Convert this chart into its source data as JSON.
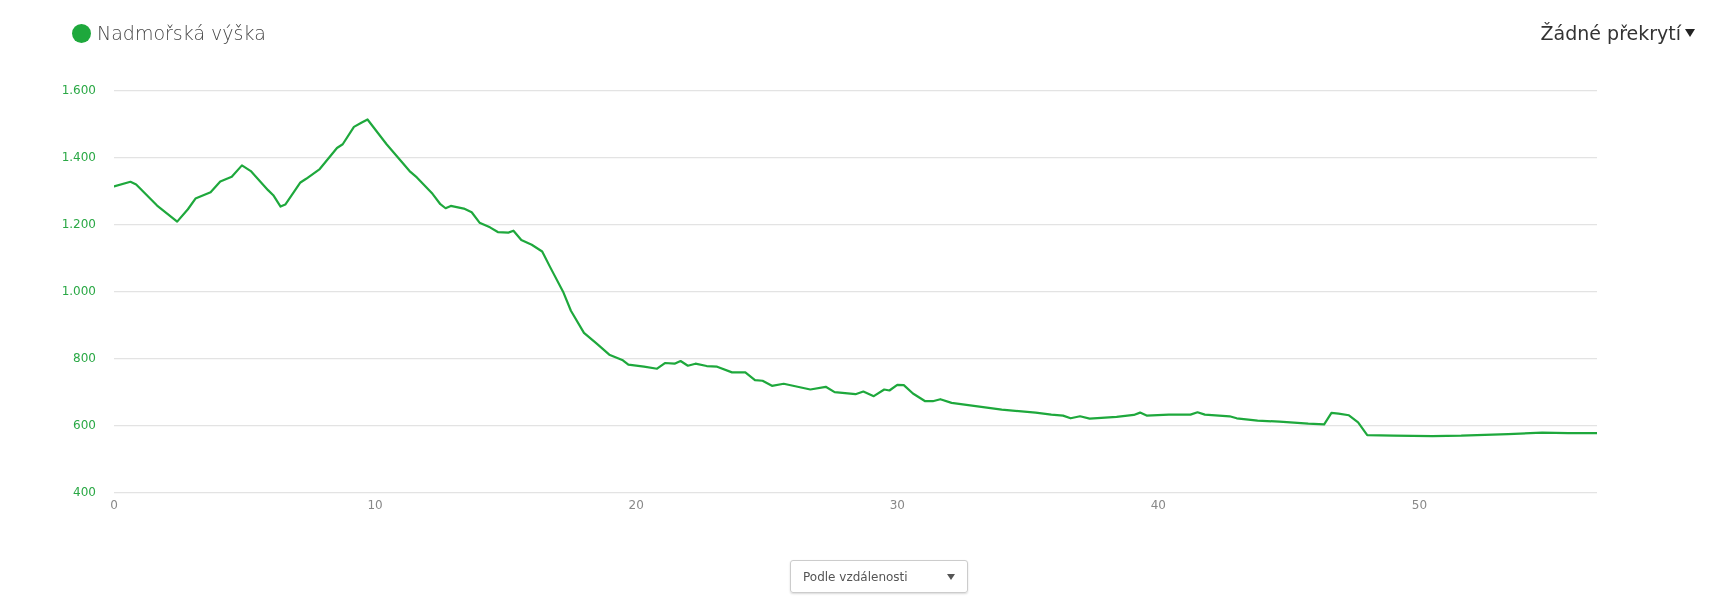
{
  "chart_data": {
    "type": "line",
    "legend": "top left",
    "grid": "y",
    "marker": "none",
    "line_style": "solid",
    "xlim": [
      0,
      56.8
    ],
    "xticks": [
      0,
      10,
      20,
      30,
      40,
      50
    ],
    "ylim": [
      400,
      1600
    ],
    "yticks": [
      400,
      600,
      800,
      {
        "value": 1000,
        "label": "1.000"
      },
      {
        "value": 1200,
        "label": "1.200"
      },
      {
        "value": 1400,
        "label": "1.400"
      },
      {
        "value": 1600,
        "label": "1.600"
      }
    ],
    "annotations": [
      "Žádné překrytí",
      "Podle vzdálenosti"
    ],
    "series": [
      {
        "name": "Nadmořská výška",
        "color": "#1ea83c",
        "x": [
          0,
          0.63,
          0.85,
          1.65,
          2.42,
          2.83,
          3.12,
          3.7,
          4.07,
          4.51,
          4.9,
          5.24,
          5.9,
          6.1,
          6.38,
          6.56,
          7.14,
          7.36,
          7.88,
          8.54,
          8.76,
          9.19,
          9.49,
          9.71,
          10.44,
          11.32,
          11.6,
          12.2,
          12.5,
          12.7,
          12.9,
          13.4,
          13.7,
          14.0,
          14.4,
          14.7,
          15.1,
          15.3,
          15.6,
          16.0,
          16.4,
          16.7,
          17.2,
          17.5,
          18.0,
          18.5,
          18.97,
          19.49,
          19.7,
          20.3,
          20.8,
          21.1,
          21.47,
          21.7,
          21.98,
          22.27,
          22.7,
          23.1,
          23.67,
          24.18,
          24.55,
          24.84,
          25.2,
          25.65,
          26.67,
          27.26,
          27.6,
          28.4,
          28.7,
          29.1,
          29.5,
          29.7,
          30.0,
          30.25,
          30.6,
          31.07,
          31.36,
          31.65,
          32.08,
          34.0,
          35.3,
          35.9,
          36.35,
          36.64,
          37.0,
          37.37,
          38.4,
          39.06,
          39.3,
          39.55,
          40.4,
          41.23,
          41.5,
          41.78,
          42.73,
          43.0,
          43.8,
          44.64,
          45.74,
          46.35,
          46.63,
          46.9,
          47.3,
          47.65,
          48.0,
          49.0,
          50.5,
          51.6,
          53.4,
          54.7,
          55.7,
          56.8
        ],
        "values": [
          1315,
          1329,
          1321,
          1258,
          1210,
          1247,
          1279,
          1298,
          1330,
          1344,
          1378,
          1361,
          1304,
          1289,
          1255,
          1261,
          1327,
          1338,
          1367,
          1430,
          1441,
          1493,
          1506,
          1515,
          1441,
          1361,
          1342,
          1293,
          1262,
          1250,
          1257,
          1249,
          1238,
          1207,
          1193,
          1179,
          1177,
          1183,
          1155,
          1141,
          1121,
          1075,
          1001,
          944,
          878,
          845,
          813,
          796,
          783,
          777,
          771,
          788,
          786,
          794,
          780,
          786,
          779,
          777,
          760,
          760,
          737,
          735,
          720,
          726,
          709,
          717,
          701,
          695,
          703,
          689,
          709,
          706,
          723,
          722,
          697,
          674,
          674,
          680,
          669,
          649,
          640,
          634,
          631,
          623,
          629,
          622,
          627,
          633,
          640,
          631,
          634,
          634,
          641,
          634,
          629,
          623,
          616,
          613,
          607,
          605,
          639,
          637,
          632,
          611,
          573,
          571,
          570,
          571,
          576,
          580,
          579,
          579
        ]
      }
    ]
  }
}
